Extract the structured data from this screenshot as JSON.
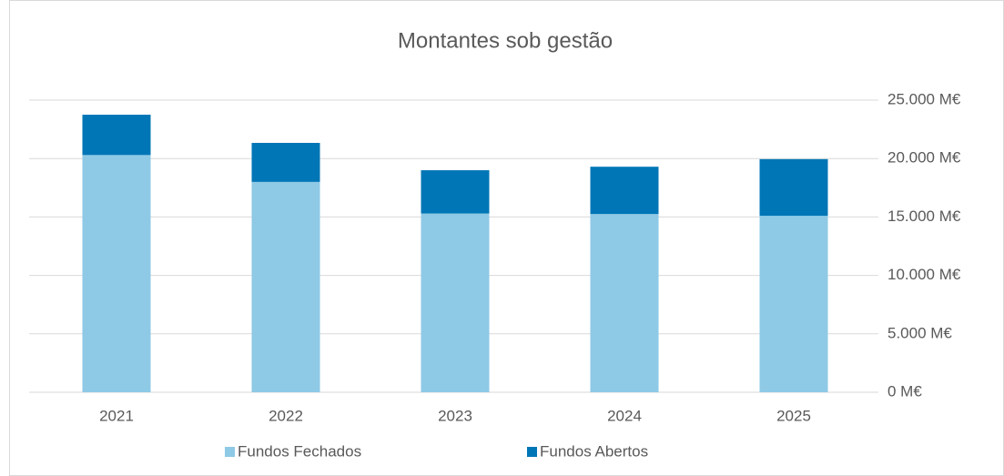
{
  "chart_data": {
    "type": "stacked_bar",
    "title": "Montantes sob gestão",
    "categories": [
      "2021",
      "2022",
      "2023",
      "2024",
      "2025"
    ],
    "series": [
      {
        "name": "Fundos Fechados",
        "color": "#8ec9e6",
        "values": [
          20300,
          18000,
          15300,
          15250,
          15100
        ]
      },
      {
        "name": "Fundos Abertos",
        "color": "#0076b6",
        "values": [
          3450,
          3340,
          3700,
          4050,
          4850
        ]
      }
    ],
    "ylim": [
      0,
      25000
    ],
    "yticks": [
      {
        "value": 0,
        "label": "0 M€"
      },
      {
        "value": 5000,
        "label": "5.000 M€"
      },
      {
        "value": 10000,
        "label": "10.000 M€"
      },
      {
        "value": 15000,
        "label": "15.000 M€"
      },
      {
        "value": 20000,
        "label": "20.000 M€"
      },
      {
        "value": 25000,
        "label": "25.000 M€"
      }
    ],
    "grid": true,
    "y_axis_side": "right",
    "legend": "bottom"
  }
}
